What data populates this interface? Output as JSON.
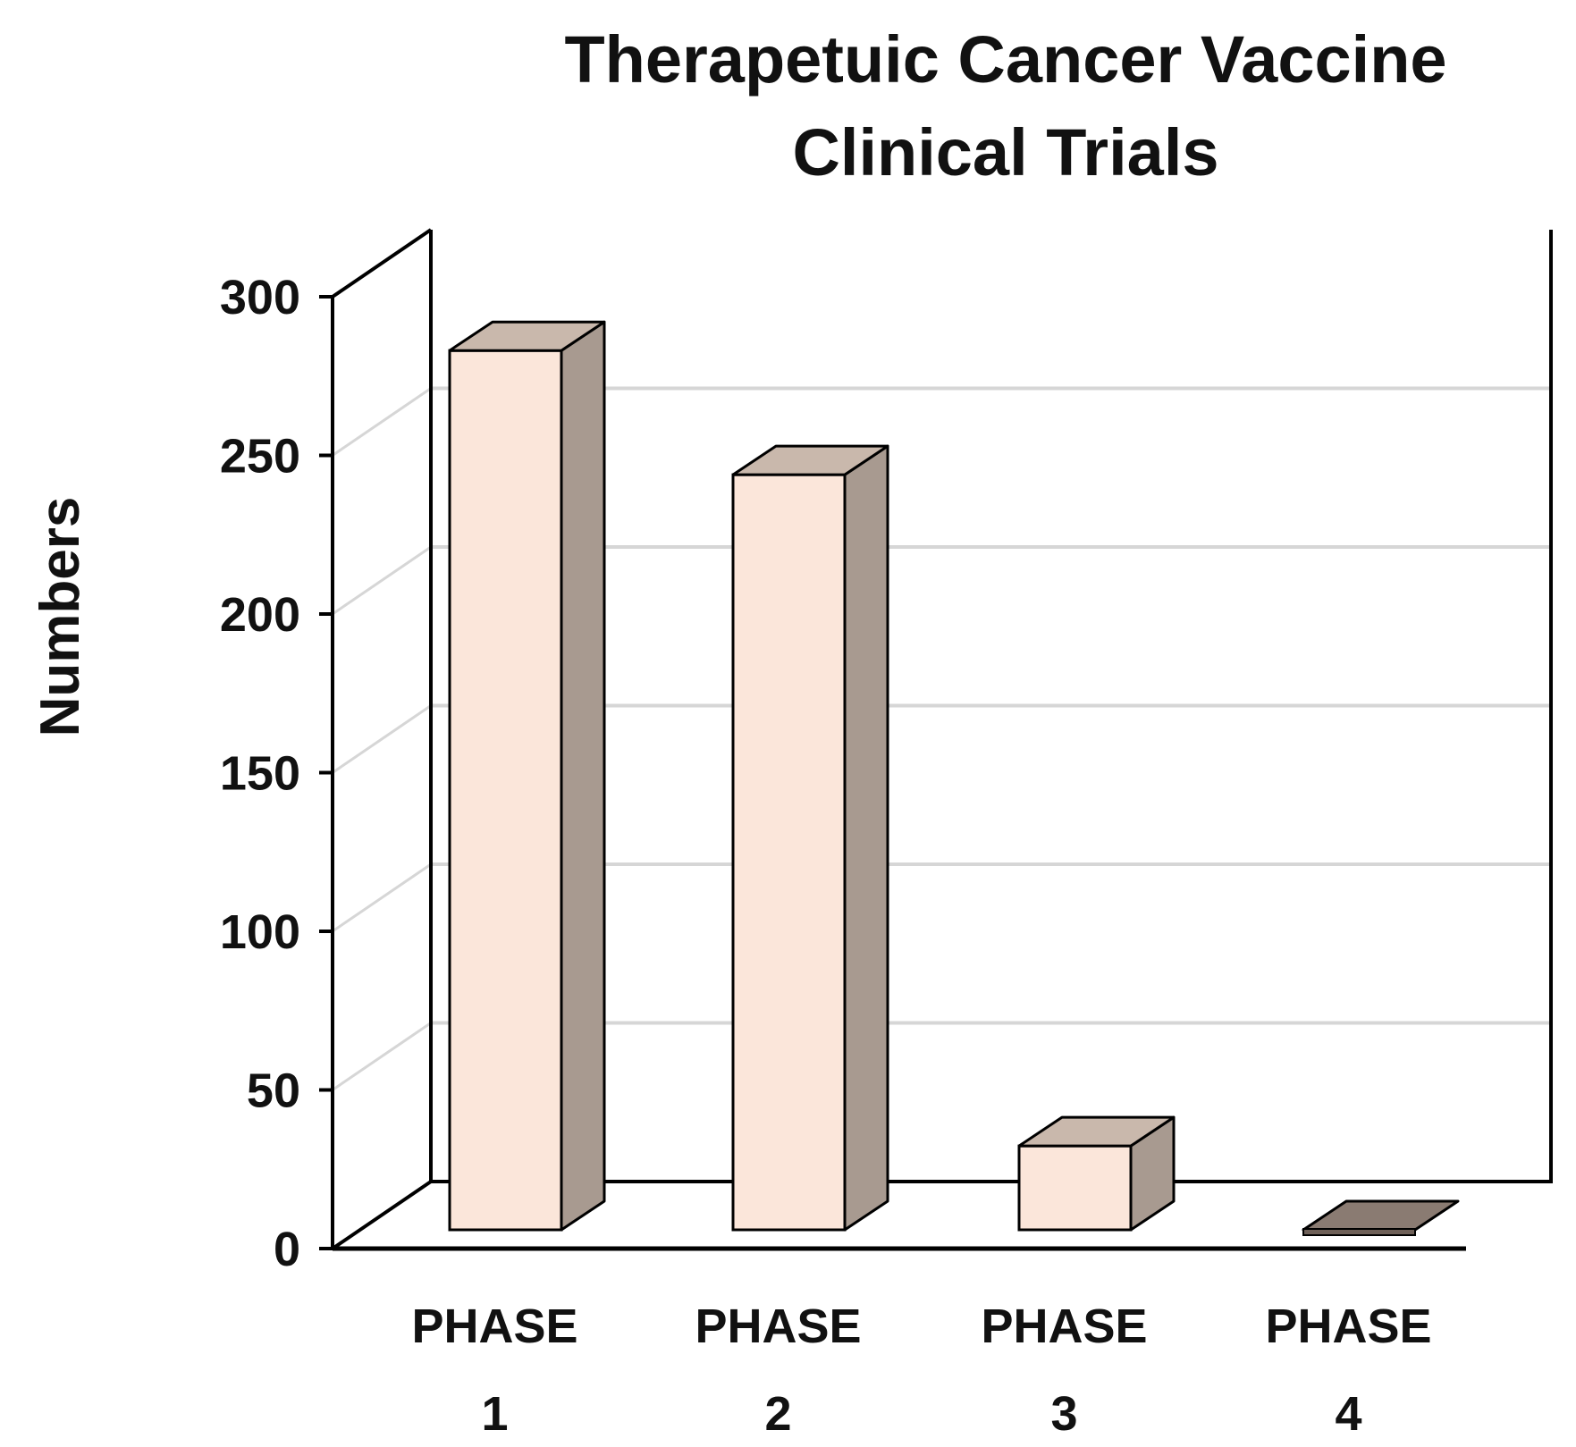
{
  "chart_data": {
    "type": "bar",
    "title": [
      "Therapetuic Cancer Vaccine",
      "Clinical Trials"
    ],
    "ylabel": "Numbers",
    "xlabel": "",
    "categories": [
      [
        "PHASE",
        "1"
      ],
      [
        "PHASE",
        "2"
      ],
      [
        "PHASE",
        "3"
      ],
      [
        "PHASE",
        "4"
      ]
    ],
    "values": [
      262,
      225,
      25,
      0
    ],
    "ylim": [
      0,
      300
    ],
    "yticks": [
      0,
      50,
      100,
      150,
      200,
      250,
      300
    ],
    "grid": true,
    "legend": "none",
    "three_d": true,
    "colors": {
      "bar_front": "#fbe6da",
      "bar_side": "#a89a90",
      "bar_top": "#c9b8ac",
      "grid": "#d6d6d6",
      "axis": "#000000",
      "text": "#111111"
    }
  }
}
